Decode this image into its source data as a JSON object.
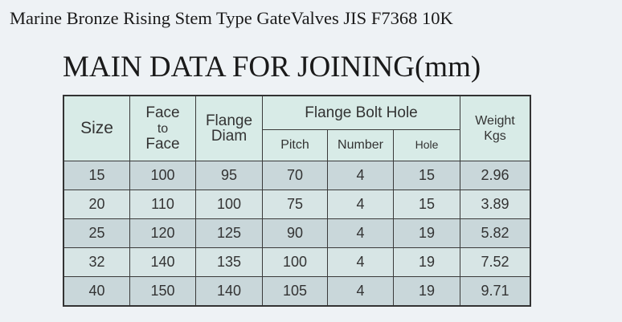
{
  "title": "Marine Bronze Rising Stem Type GateValves JIS F7368 10K",
  "subtitle": "MAIN DATA FOR JOINING(mm)",
  "table": {
    "headers": {
      "size": "Size",
      "face_to_face": [
        "Face",
        "to",
        "Face"
      ],
      "flange_diam": [
        "Flange",
        "Diam"
      ],
      "flange_bolt_hole": "Flange Bolt Hole",
      "pitch": "Pitch",
      "number": "Number",
      "hole": "Hole",
      "weight": [
        "Weight",
        "Kgs"
      ]
    },
    "rows": [
      [
        "15",
        "100",
        "95",
        "70",
        "4",
        "15",
        "2.96"
      ],
      [
        "20",
        "110",
        "100",
        "75",
        "4",
        "15",
        "3.89"
      ],
      [
        "25",
        "120",
        "125",
        "90",
        "4",
        "19",
        "5.82"
      ],
      [
        "32",
        "140",
        "135",
        "100",
        "4",
        "19",
        "7.52"
      ],
      [
        "40",
        "150",
        "140",
        "105",
        "4",
        "19",
        "9.71"
      ]
    ]
  }
}
